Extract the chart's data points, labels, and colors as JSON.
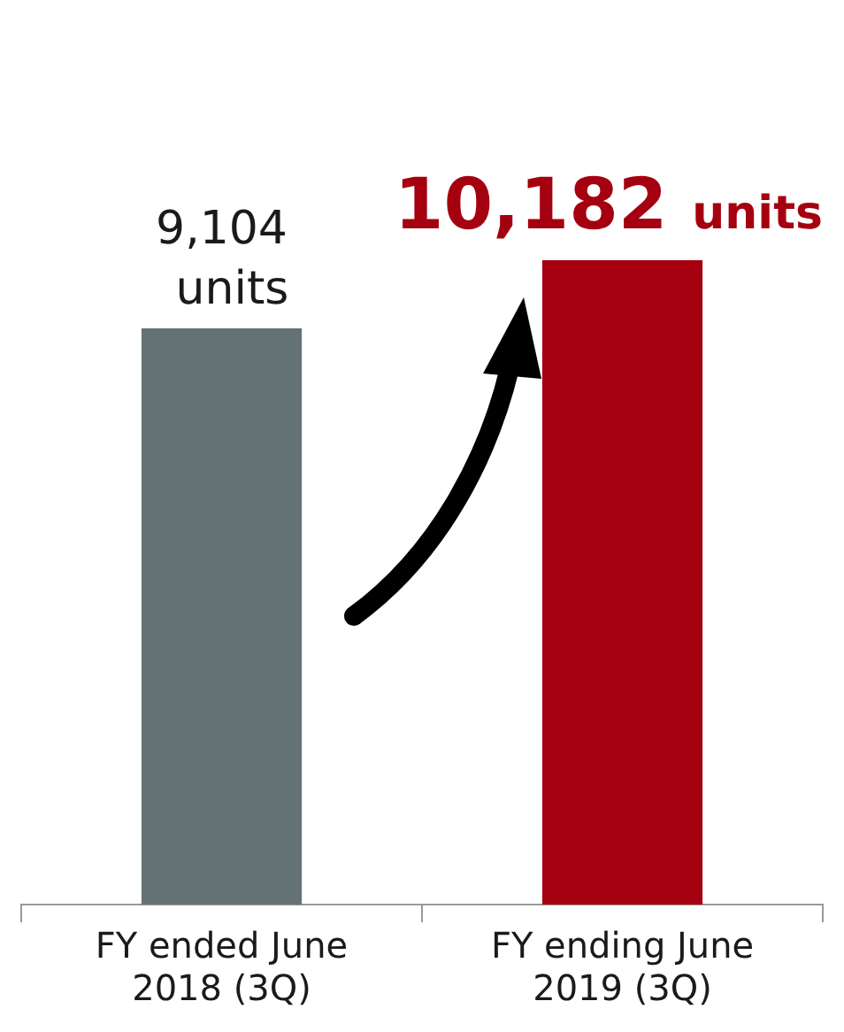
{
  "chart_data": {
    "type": "bar",
    "categories": [
      "FY ended June 2018 (3Q)",
      "FY ending June 2019 (3Q)"
    ],
    "values": [
      9104,
      10182
    ],
    "colors": [
      "#657275",
      "#a5000f"
    ],
    "value_labels": [
      "9,104 units",
      "10,182 units"
    ],
    "tick_labels": "x",
    "grid": false,
    "legend": false
  }
}
